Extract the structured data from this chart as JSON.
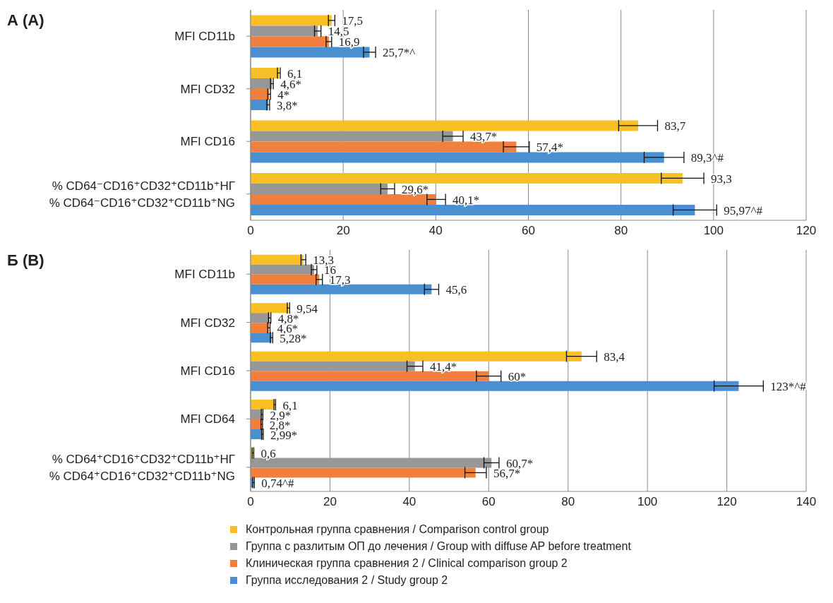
{
  "chart_data": [
    {
      "type": "bar",
      "orientation": "horizontal",
      "title": "А (A)",
      "categories": [
        "MFI CD11b",
        "MFI CD32",
        "MFI CD16",
        "% CD64⁻CD16⁺CD32⁺CD11b⁺НГ\n% CD64⁻CD16⁺CD32⁺CD11b⁺NG"
      ],
      "xlim": [
        0,
        120
      ],
      "xticks": [
        0,
        20,
        40,
        60,
        80,
        100,
        120
      ],
      "grid": "x",
      "legend": false,
      "series": [
        {
          "color": "#f9c025",
          "values": [
            17.5,
            6.1,
            83.7,
            93.3
          ],
          "errors": [
            0.7,
            0.3,
            4.2,
            4.6
          ],
          "value_labels": [
            "17,5",
            "6,1",
            "83,7",
            "93,3"
          ]
        },
        {
          "color": "#979797",
          "values": [
            14.5,
            4.6,
            43.7,
            29.6
          ],
          "errors": [
            0.7,
            0.3,
            2.2,
            1.5
          ],
          "value_labels": [
            "14,5",
            "4,6*",
            "43,7*",
            "29,6*"
          ]
        },
        {
          "color": "#f2803c",
          "values": [
            16.9,
            4,
            57.4,
            40.1
          ],
          "errors": [
            0.6,
            0.3,
            2.8,
            2
          ],
          "value_labels": [
            "16,9",
            "4*",
            "57,4*",
            "40,1*"
          ]
        },
        {
          "color": "#4a90d0",
          "values": [
            25.7,
            3.8,
            89.3,
            95.97
          ],
          "errors": [
            1.3,
            0.3,
            4.3,
            4.7
          ],
          "value_labels": [
            "25,7*^",
            "3,8*",
            "89,3^#",
            "95,97^#"
          ]
        }
      ]
    },
    {
      "type": "bar",
      "orientation": "horizontal",
      "title": "Б (B)",
      "categories": [
        "MFI CD11b",
        "MFI CD32",
        "MFI CD16",
        "MFI CD64",
        "% CD64⁺CD16⁺CD32⁺CD11b⁺НГ\n% CD64⁺CD16⁺CD32⁺CD11b⁺NG"
      ],
      "xlim": [
        0,
        140
      ],
      "xticks": [
        0,
        20,
        40,
        60,
        80,
        100,
        120,
        140
      ],
      "grid": "x",
      "legend": "bottom",
      "series": [
        {
          "name": "Контрольная группа сравнения / Comparison control group",
          "color": "#f9c025",
          "values": [
            13.3,
            9.54,
            83.4,
            6.1,
            0.6
          ],
          "errors": [
            0.6,
            0.3,
            3.8,
            0.2,
            0.2
          ],
          "value_labels": [
            "13,3",
            "9,54",
            "83,4",
            "6,1",
            "0,6"
          ]
        },
        {
          "name": "Группа с разлитым ОП до лечения / Group with diffuse AP before treatment",
          "color": "#979797",
          "values": [
            16,
            4.8,
            41.4,
            2.9,
            60.7
          ],
          "errors": [
            0.7,
            0.3,
            2,
            0.2,
            1.9
          ],
          "value_labels": [
            "16",
            "4,8*",
            "41,4*",
            "2,9*",
            "60,7*"
          ]
        },
        {
          "name": "Клиническая группа сравнения 2 / Clinical comparison group 2",
          "color": "#f2803c",
          "values": [
            17.3,
            4.6,
            60,
            2.8,
            56.7
          ],
          "errors": [
            0.8,
            0.3,
            3.1,
            0.2,
            2.7
          ],
          "value_labels": [
            "17,3",
            "4,6*",
            "60*",
            "2,8*",
            "56,7*"
          ]
        },
        {
          "name": "Группа исследования 2 / Study group 2",
          "color": "#4a90d0",
          "values": [
            45.6,
            5.28,
            123,
            2.99,
            0.74
          ],
          "errors": [
            1.8,
            0.3,
            6.2,
            0.2,
            0.2
          ],
          "value_labels": [
            "45,6",
            "5,28*",
            "123*^#",
            "2,99*",
            "0,74^#"
          ]
        }
      ]
    }
  ]
}
